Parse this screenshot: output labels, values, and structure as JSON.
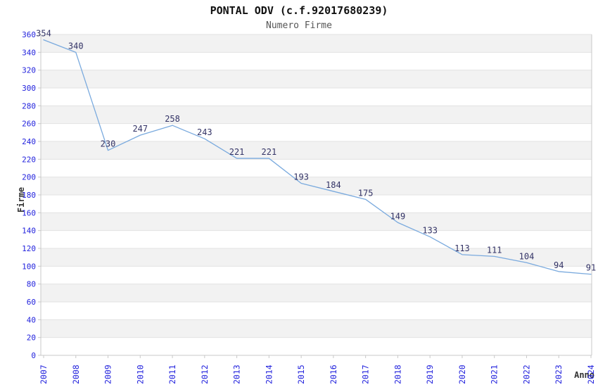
{
  "header": {
    "title": "PONTAL ODV (c.f.92017680239)",
    "subtitle": "Numero Firme"
  },
  "chart_data": {
    "type": "line",
    "title": "PONTAL ODV (c.f.92017680239)",
    "subtitle": "Numero Firme",
    "xlabel": "Anno",
    "ylabel": "Firme",
    "x": [
      2007,
      2008,
      2009,
      2010,
      2011,
      2012,
      2013,
      2014,
      2015,
      2016,
      2017,
      2018,
      2019,
      2020,
      2021,
      2022,
      2023,
      2024
    ],
    "series": [
      {
        "name": "Numero Firme",
        "values": [
          354,
          340,
          230,
          247,
          258,
          243,
          221,
          221,
          193,
          184,
          175,
          149,
          133,
          113,
          111,
          104,
          94,
          91
        ]
      }
    ],
    "point_labels": [
      354,
      340,
      230,
      247,
      258,
      243,
      221,
      221,
      193,
      184,
      175,
      149,
      133,
      113,
      111,
      104,
      94,
      91
    ],
    "ylim": [
      0,
      360
    ],
    "ytick_step": 20,
    "legend": "none",
    "grid": "horizontal-gridlines-with-alternating-bands",
    "x_tick_rotation_deg": -90,
    "colors": {
      "line": "#7aaade",
      "tick_label": "#2222dd",
      "point_label": "#333366",
      "band": "#f2f2f2",
      "gridline": "#e2e2e2",
      "axis": "#c8c8c8",
      "title": "#111111",
      "subtitle": "#555555",
      "axis_title": "#333333",
      "background": "#ffffff"
    }
  }
}
